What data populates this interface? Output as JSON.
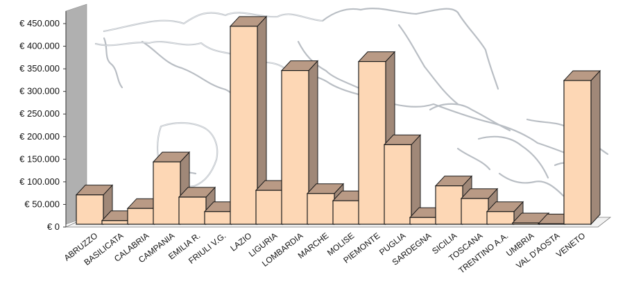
{
  "chart_data": {
    "type": "bar",
    "title": "",
    "xlabel": "",
    "ylabel": "",
    "categories": [
      "ABRUZZO",
      "BASILICATA",
      "CALABRIA",
      "CAMPANIA",
      "EMILIA R.",
      "FRIULI V.G.",
      "LAZIO",
      "LIGURIA",
      "LOMBARDIA",
      "MARCHE",
      "MOLISE",
      "PIEMONTE",
      "PUGLIA",
      "SARDEGNA",
      "SICILIA",
      "TOSCANA",
      "TRENTINO A.A.",
      "UMBRIA",
      "VAL D'AOSTA",
      "VENETO"
    ],
    "values": [
      65000,
      8000,
      35000,
      138000,
      60000,
      28000,
      438000,
      75000,
      340000,
      68000,
      52000,
      360000,
      176000,
      15000,
      85000,
      57000,
      28000,
      3000,
      1000,
      318000
    ],
    "ylim": [
      0,
      450000
    ],
    "y_ticks": [
      {
        "value": 0,
        "label": "€ 0"
      },
      {
        "value": 50000,
        "label": "€ 50.000"
      },
      {
        "value": 100000,
        "label": "€ 100.000"
      },
      {
        "value": 150000,
        "label": "€ 150.000"
      },
      {
        "value": 200000,
        "label": "€ 200.000"
      },
      {
        "value": 250000,
        "label": "€ 250.000"
      },
      {
        "value": 300000,
        "label": "€ 300.000"
      },
      {
        "value": 350000,
        "label": "€ 350.000"
      },
      {
        "value": 400000,
        "label": "€ 400.000"
      },
      {
        "value": 450000,
        "label": "€ 450.000"
      }
    ],
    "grid": false,
    "legend": "none",
    "style": "3d-column",
    "background": "map of Italy",
    "colors": {
      "bar_front": "#FDD7B5",
      "bar_side": "#A08878",
      "bar_top": "#B99A85",
      "bar_outline": "#1a1a1a",
      "wall": "#b0b0b0",
      "floor": "#f2f2f2",
      "map_border": "#b9bec4"
    }
  }
}
